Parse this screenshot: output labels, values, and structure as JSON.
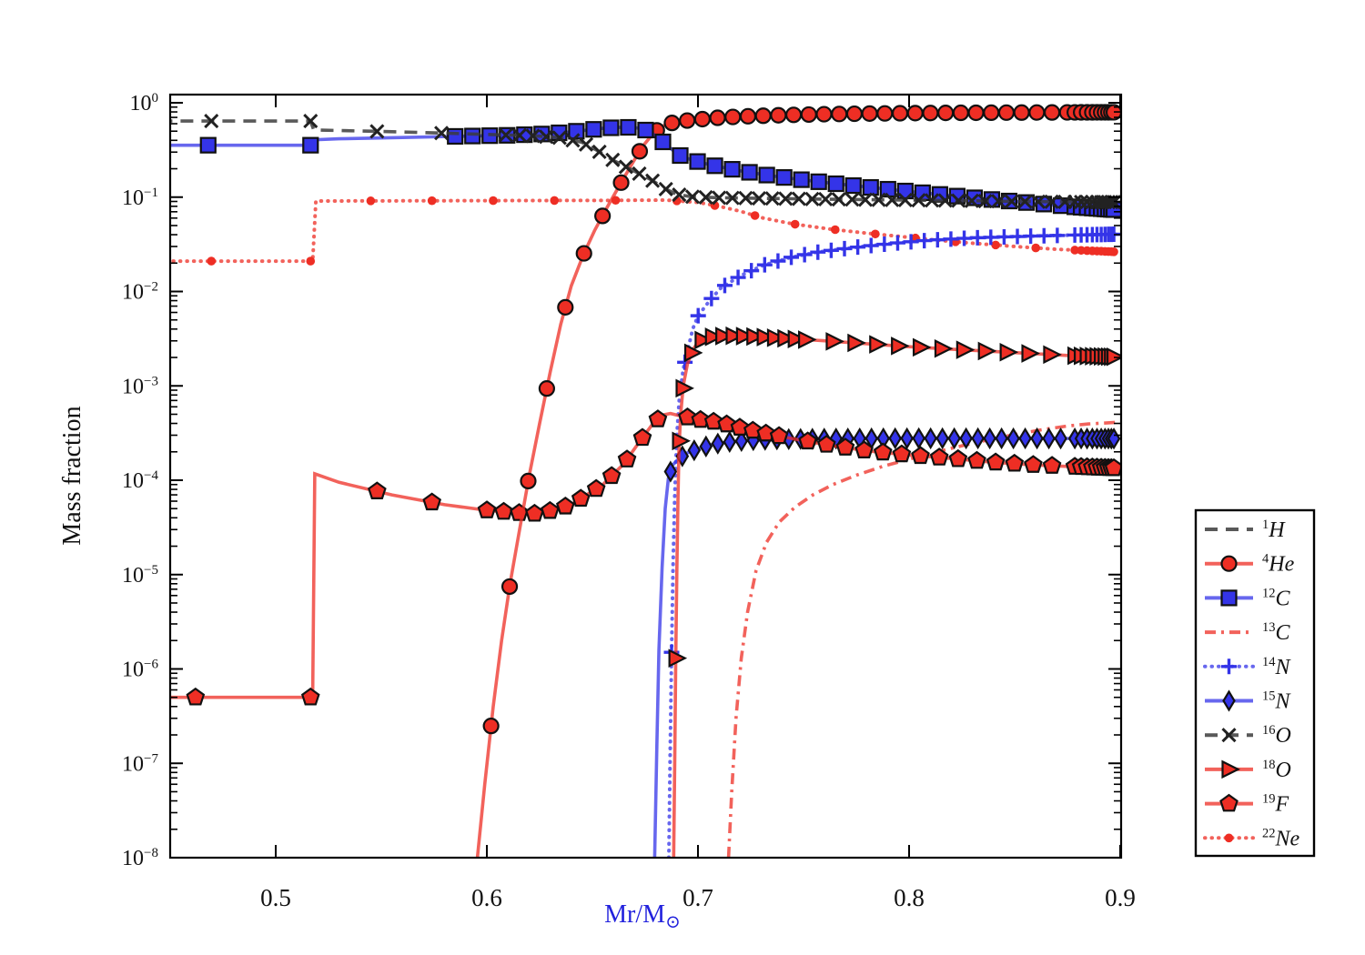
{
  "chart_data": {
    "type": "line",
    "title": "",
    "xlabel_main": "Mr/M",
    "xlabel_sub": "⊙",
    "ylabel": "Mass fraction",
    "xlim": [
      0.45,
      0.9
    ],
    "ylim": [
      1e-08,
      1.2
    ],
    "yscale": "log",
    "grid": false,
    "legend_position": "right-outside",
    "xticks": [
      0.5,
      0.6,
      0.7,
      0.8,
      0.9
    ],
    "ytick_exponents": [
      0,
      -1,
      -2,
      -3,
      -4,
      -5,
      -6,
      -7,
      -8
    ],
    "colors": {
      "red": "#ee2e24",
      "blue": "#3434e8",
      "gray": "#3c3c3c",
      "red_line": "rgba(238,46,36,0.75)",
      "blue_line": "rgba(52,52,232,0.75)",
      "gray_line": "rgba(60,60,60,0.85)",
      "axis_label_color": "#2222dd",
      "marker_edge": "#111111"
    },
    "marker_pile": [
      0.8785,
      0.8815,
      0.8843,
      0.8868,
      0.889,
      0.891,
      0.8928,
      0.8944,
      0.8958,
      0.897
    ],
    "series": [
      {
        "name": "1H",
        "label": {
          "sup": "1",
          "sym": "H"
        },
        "color": "gray",
        "line": "dashed",
        "marker": "none",
        "pile": false,
        "marker_runs": [],
        "points": []
      },
      {
        "name": "4He",
        "label": {
          "sup": "4",
          "sym": "He"
        },
        "color": "red",
        "line": "solid",
        "marker": "circle",
        "pile": true,
        "marker_runs": [
          [
            0.602,
            0.676,
            0.0088
          ],
          [
            0.6805,
            0.876,
            0.0072
          ]
        ],
        "points": [
          [
            0.5955,
            1e-08
          ],
          [
            0.599,
            6e-08
          ],
          [
            0.603,
            4e-07
          ],
          [
            0.607,
            2e-06
          ],
          [
            0.611,
            8e-06
          ],
          [
            0.6155,
            3e-05
          ],
          [
            0.62,
            0.00011
          ],
          [
            0.625,
            0.0004
          ],
          [
            0.63,
            0.0014
          ],
          [
            0.635,
            0.0045
          ],
          [
            0.64,
            0.0115
          ],
          [
            0.6455,
            0.024
          ],
          [
            0.651,
            0.044
          ],
          [
            0.657,
            0.078
          ],
          [
            0.663,
            0.135
          ],
          [
            0.669,
            0.23
          ],
          [
            0.674,
            0.35
          ],
          [
            0.679,
            0.48
          ],
          [
            0.683,
            0.565
          ],
          [
            0.688,
            0.615
          ],
          [
            0.694,
            0.645
          ],
          [
            0.7,
            0.665
          ],
          [
            0.71,
            0.695
          ],
          [
            0.72,
            0.715
          ],
          [
            0.74,
            0.74
          ],
          [
            0.76,
            0.757
          ],
          [
            0.78,
            0.768
          ],
          [
            0.8,
            0.776
          ],
          [
            0.82,
            0.782
          ],
          [
            0.85,
            0.787
          ],
          [
            0.875,
            0.791
          ],
          [
            0.898,
            0.793
          ]
        ]
      },
      {
        "name": "12C",
        "label": {
          "sup": "12",
          "sym": "C"
        },
        "color": "blue",
        "line": "solid",
        "marker": "square",
        "pile": true,
        "marker_runs": [
          [
            0.468,
            0.52,
            0.0485
          ],
          [
            0.585,
            0.876,
            0.0082
          ]
        ],
        "points": [
          [
            0.445,
            0.355
          ],
          [
            0.5165,
            0.355
          ],
          [
            0.518,
            0.405
          ],
          [
            0.53,
            0.415
          ],
          [
            0.56,
            0.428
          ],
          [
            0.59,
            0.443
          ],
          [
            0.61,
            0.452
          ],
          [
            0.625,
            0.465
          ],
          [
            0.638,
            0.487
          ],
          [
            0.648,
            0.515
          ],
          [
            0.6555,
            0.538
          ],
          [
            0.662,
            0.548
          ],
          [
            0.6675,
            0.549
          ],
          [
            0.672,
            0.538
          ],
          [
            0.676,
            0.508
          ],
          [
            0.68,
            0.448
          ],
          [
            0.684,
            0.375
          ],
          [
            0.688,
            0.315
          ],
          [
            0.692,
            0.272
          ],
          [
            0.697,
            0.248
          ],
          [
            0.703,
            0.228
          ],
          [
            0.71,
            0.21
          ],
          [
            0.72,
            0.19
          ],
          [
            0.735,
            0.168
          ],
          [
            0.75,
            0.152
          ],
          [
            0.765,
            0.139
          ],
          [
            0.78,
            0.128
          ],
          [
            0.8,
            0.115
          ],
          [
            0.82,
            0.104
          ],
          [
            0.84,
            0.094
          ],
          [
            0.86,
            0.086
          ],
          [
            0.875,
            0.08
          ],
          [
            0.898,
            0.0735
          ]
        ]
      },
      {
        "name": "13C",
        "label": {
          "sup": "13",
          "sym": "C"
        },
        "color": "red",
        "line": "dashdot",
        "marker": "none",
        "pile": false,
        "marker_runs": [],
        "points": [
          [
            0.7145,
            1e-08
          ],
          [
            0.716,
            5e-08
          ],
          [
            0.718,
            3e-07
          ],
          [
            0.7205,
            1.3e-06
          ],
          [
            0.7235,
            4e-06
          ],
          [
            0.7275,
            1.1e-05
          ],
          [
            0.7325,
            2.2e-05
          ],
          [
            0.7385,
            3.6e-05
          ],
          [
            0.746,
            5.2e-05
          ],
          [
            0.7545,
            7e-05
          ],
          [
            0.764,
            9e-05
          ],
          [
            0.775,
            0.000113
          ],
          [
            0.7875,
            0.00014
          ],
          [
            0.8,
            0.000167
          ],
          [
            0.8125,
            0.000198
          ],
          [
            0.825,
            0.000232
          ],
          [
            0.8375,
            0.000268
          ],
          [
            0.85,
            0.000305
          ],
          [
            0.8625,
            0.000342
          ],
          [
            0.875,
            0.000375
          ],
          [
            0.885,
            0.000395
          ],
          [
            0.898,
            0.00041
          ]
        ]
      },
      {
        "name": "14N",
        "label": {
          "sup": "14",
          "sym": "N"
        },
        "color": "blue",
        "line": "dotted",
        "marker": "plus",
        "pile": true,
        "marker_runs": [
          [
            0.6875,
            0.876,
            0.0063
          ]
        ],
        "points": [
          [
            0.6862,
            1e-08
          ],
          [
            0.6868,
            1.2e-07
          ],
          [
            0.6875,
            1.5e-06
          ],
          [
            0.6882,
            1.2e-05
          ],
          [
            0.689,
            7e-05
          ],
          [
            0.69,
            0.0003
          ],
          [
            0.6912,
            0.00075
          ],
          [
            0.693,
            0.0015
          ],
          [
            0.695,
            0.0023
          ],
          [
            0.6975,
            0.004
          ],
          [
            0.7,
            0.0055
          ],
          [
            0.7055,
            0.008
          ],
          [
            0.711,
            0.011
          ],
          [
            0.721,
            0.015
          ],
          [
            0.731,
            0.019
          ],
          [
            0.744,
            0.023
          ],
          [
            0.756,
            0.026
          ],
          [
            0.767,
            0.028
          ],
          [
            0.778,
            0.03
          ],
          [
            0.793,
            0.0325
          ],
          [
            0.81,
            0.035
          ],
          [
            0.83,
            0.037
          ],
          [
            0.855,
            0.0385
          ],
          [
            0.875,
            0.0395
          ],
          [
            0.898,
            0.0405
          ]
        ]
      },
      {
        "name": "15N",
        "label": {
          "sup": "15",
          "sym": "N"
        },
        "color": "blue",
        "line": "solid",
        "marker": "diamond",
        "pile": true,
        "marker_runs": [
          [
            0.687,
            0.876,
            0.0056
          ]
        ],
        "points": [
          [
            0.6795,
            1e-08
          ],
          [
            0.6805,
            1.5e-07
          ],
          [
            0.6815,
            1.6e-06
          ],
          [
            0.683,
            1.2e-05
          ],
          [
            0.6845,
            5e-05
          ],
          [
            0.686,
            0.000105
          ],
          [
            0.688,
            0.000145
          ],
          [
            0.691,
            0.00017
          ],
          [
            0.695,
            0.000195
          ],
          [
            0.7,
            0.000215
          ],
          [
            0.707,
            0.00024
          ],
          [
            0.715,
            0.000255
          ],
          [
            0.7255,
            0.000265
          ],
          [
            0.74,
            0.000272
          ],
          [
            0.76,
            0.000276
          ],
          [
            0.79,
            0.000278
          ],
          [
            0.83,
            0.000278
          ],
          [
            0.87,
            0.000277
          ],
          [
            0.898,
            0.000276
          ]
        ]
      },
      {
        "name": "16O",
        "label": {
          "sup": "16",
          "sym": "O"
        },
        "color": "gray",
        "line": "dashed",
        "marker": "x",
        "pile": true,
        "marker_runs": [
          [
            0.4695,
            0.52,
            0.047
          ],
          [
            0.548,
            0.61,
            0.0305
          ],
          [
            0.6155,
            0.876,
            0.0063
          ]
        ],
        "points": [
          [
            0.445,
            0.64
          ],
          [
            0.5165,
            0.64
          ],
          [
            0.518,
            0.515
          ],
          [
            0.55,
            0.497
          ],
          [
            0.58,
            0.477
          ],
          [
            0.6,
            0.462
          ],
          [
            0.615,
            0.452
          ],
          [
            0.625,
            0.443
          ],
          [
            0.635,
            0.425
          ],
          [
            0.645,
            0.382
          ],
          [
            0.652,
            0.315
          ],
          [
            0.66,
            0.245
          ],
          [
            0.67,
            0.188
          ],
          [
            0.678,
            0.152
          ],
          [
            0.684,
            0.124
          ],
          [
            0.69,
            0.107
          ],
          [
            0.697,
            0.101
          ],
          [
            0.71,
            0.0985
          ],
          [
            0.74,
            0.0965
          ],
          [
            0.78,
            0.094
          ],
          [
            0.82,
            0.092
          ],
          [
            0.86,
            0.0895
          ],
          [
            0.898,
            0.0885
          ]
        ]
      },
      {
        "name": "18O",
        "label": {
          "sup": "18",
          "sym": "O"
        },
        "color": "red",
        "line": "solid",
        "marker": "triangle",
        "pile": true,
        "marker_runs": [
          [
            0.6895,
            0.693,
            0.0017
          ],
          [
            0.697,
            0.755,
            0.0049
          ],
          [
            0.764,
            0.876,
            0.0103
          ]
        ],
        "points": [
          [
            0.6885,
            1e-08
          ],
          [
            0.689,
            1.1e-07
          ],
          [
            0.6895,
            1.3e-06
          ],
          [
            0.69,
            1.1e-05
          ],
          [
            0.6905,
            6e-05
          ],
          [
            0.691,
            0.00021
          ],
          [
            0.6918,
            0.0005
          ],
          [
            0.693,
            0.001
          ],
          [
            0.695,
            0.0017
          ],
          [
            0.6975,
            0.0024
          ],
          [
            0.7,
            0.0029
          ],
          [
            0.7035,
            0.0032
          ],
          [
            0.708,
            0.00335
          ],
          [
            0.715,
            0.0034
          ],
          [
            0.725,
            0.00335
          ],
          [
            0.74,
            0.0032
          ],
          [
            0.76,
            0.003
          ],
          [
            0.78,
            0.0028
          ],
          [
            0.8,
            0.0026
          ],
          [
            0.82,
            0.00245
          ],
          [
            0.85,
            0.00225
          ],
          [
            0.875,
            0.0021
          ],
          [
            0.898,
            0.00203
          ]
        ]
      },
      {
        "name": "19F",
        "label": {
          "sup": "19",
          "sym": "F"
        },
        "color": "red",
        "line": "solid",
        "marker": "pentagon",
        "pile": true,
        "marker_runs": [
          [
            0.462,
            0.52,
            0.0545
          ],
          [
            0.548,
            0.6,
            0.026
          ],
          [
            0.608,
            0.688,
            0.0073
          ],
          [
            0.695,
            0.744,
            0.0062
          ],
          [
            0.752,
            0.876,
            0.0089
          ]
        ],
        "points": [
          [
            0.445,
            5e-07
          ],
          [
            0.5175,
            5e-07
          ],
          [
            0.5185,
            0.000117
          ],
          [
            0.53,
            9.5e-05
          ],
          [
            0.555,
            7e-05
          ],
          [
            0.58,
            5.5e-05
          ],
          [
            0.6,
            4.8e-05
          ],
          [
            0.615,
            4.5e-05
          ],
          [
            0.625,
            4.4e-05
          ],
          [
            0.64,
            5.5e-05
          ],
          [
            0.655,
            9e-05
          ],
          [
            0.665,
            0.00015
          ],
          [
            0.672,
            0.00025
          ],
          [
            0.678,
            0.00038
          ],
          [
            0.683,
            0.00049
          ],
          [
            0.687,
            0.00051
          ],
          [
            0.69,
            0.00049
          ],
          [
            0.7,
            0.00044
          ],
          [
            0.71,
            0.00041
          ],
          [
            0.72,
            0.00036
          ],
          [
            0.73,
            0.00032
          ],
          [
            0.745,
            0.000275
          ],
          [
            0.76,
            0.00024
          ],
          [
            0.78,
            0.000205
          ],
          [
            0.8,
            0.000185
          ],
          [
            0.82,
            0.00017
          ],
          [
            0.84,
            0.000155
          ],
          [
            0.86,
            0.000145
          ],
          [
            0.875,
            0.00014
          ],
          [
            0.898,
            0.000134
          ]
        ]
      },
      {
        "name": "22Ne",
        "label": {
          "sup": "22",
          "sym": "Ne"
        },
        "color": "red",
        "line": "dotted",
        "marker": "dot",
        "pile": true,
        "marker_runs": [
          [
            0.4695,
            0.52,
            0.047
          ],
          [
            0.545,
            0.69,
            0.029
          ],
          [
            0.708,
            0.876,
            0.019
          ]
        ],
        "points": [
          [
            0.445,
            0.021
          ],
          [
            0.5175,
            0.021
          ],
          [
            0.519,
            0.091
          ],
          [
            0.56,
            0.0915
          ],
          [
            0.62,
            0.092
          ],
          [
            0.66,
            0.0925
          ],
          [
            0.685,
            0.093
          ],
          [
            0.7,
            0.088
          ],
          [
            0.71,
            0.08
          ],
          [
            0.72,
            0.071
          ],
          [
            0.731,
            0.06
          ],
          [
            0.745,
            0.052
          ],
          [
            0.762,
            0.046
          ],
          [
            0.78,
            0.0415
          ],
          [
            0.795,
            0.0385
          ],
          [
            0.81,
            0.0355
          ],
          [
            0.83,
            0.0325
          ],
          [
            0.85,
            0.03
          ],
          [
            0.87,
            0.028
          ],
          [
            0.898,
            0.0263
          ]
        ]
      }
    ]
  }
}
